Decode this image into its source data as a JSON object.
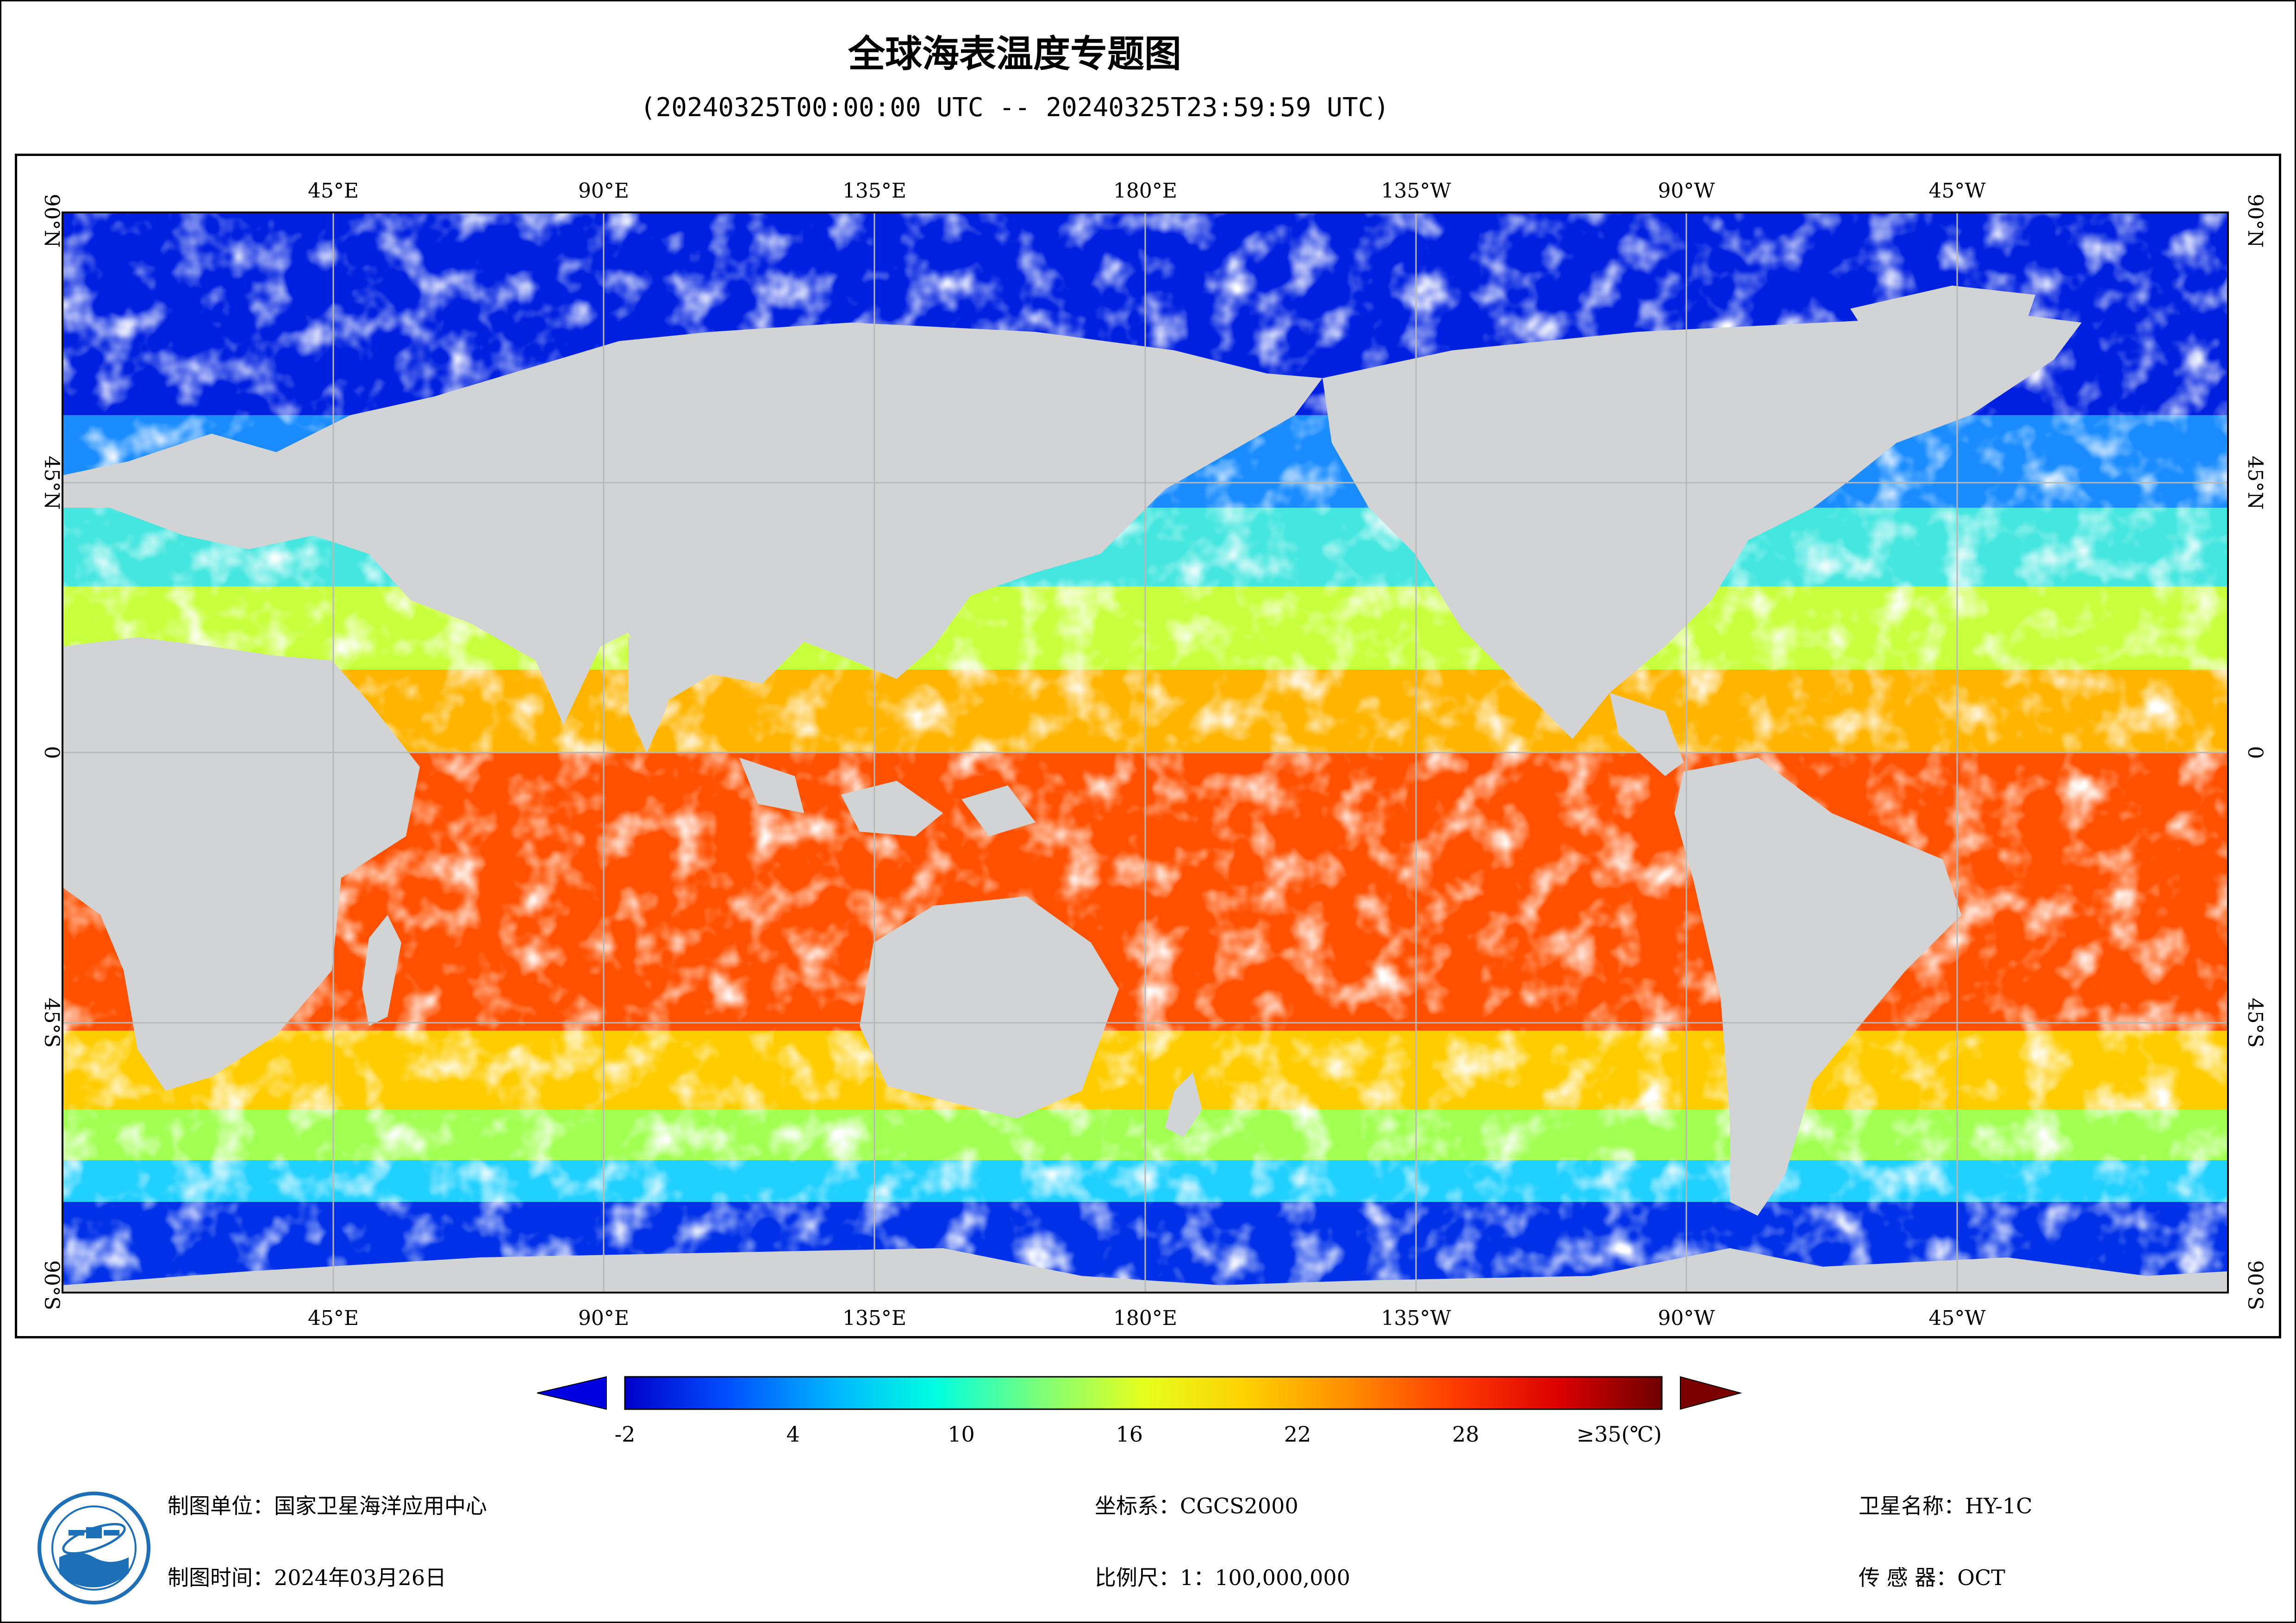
{
  "header": {
    "title": "全球海表温度专题图",
    "subtitle": "(20240325T00:00:00 UTC -- 20240325T23:59:59 UTC)"
  },
  "map": {
    "top_longitude_labels": [
      "45°E",
      "90°E",
      "135°E",
      "180°E",
      "135°W",
      "90°W",
      "45°W"
    ],
    "bottom_longitude_labels": [
      "45°E",
      "90°E",
      "135°E",
      "180°E",
      "135°W",
      "90°W",
      "45°W"
    ],
    "latitude_labels": [
      "90°N",
      "45°N",
      "0",
      "45°S",
      "90°S"
    ],
    "colors": {
      "land": "#d2d3d5",
      "cloud_or_no_data": "#ffffff",
      "grid": "#b8b8b8"
    }
  },
  "legend": {
    "tick_labels": [
      "-2",
      "4",
      "10",
      "16",
      "22",
      "28",
      "≥35(℃)"
    ],
    "tick_values": [
      -2,
      4,
      10,
      16,
      22,
      28,
      35
    ],
    "min_value": -2,
    "max_value": 35,
    "colormap": [
      "#0000c8",
      "#0050ff",
      "#00b4ff",
      "#00ffe0",
      "#7cff7a",
      "#e6ff1e",
      "#ffd000",
      "#ff8c00",
      "#ff3c00",
      "#dc0000",
      "#6e0000"
    ]
  },
  "footer": {
    "producer": "制图单位：国家卫星海洋应用中心",
    "date": "制图时间：2024年03月26日",
    "coordinate_system": "坐标系：CGCS2000",
    "scale": "比例尺：1：100,000,000",
    "satellite": "卫星名称：HY-1C",
    "sensor": "传 感 器：OCT"
  }
}
